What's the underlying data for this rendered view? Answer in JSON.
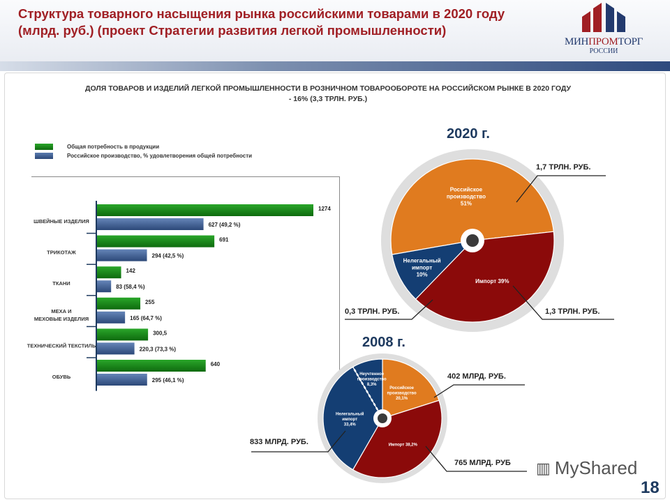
{
  "header": {
    "title": "Структура товарного насыщения рынка российскими товарами в 2020 году (млрд. руб.) (проект Стратегии развития легкой промышленности)",
    "logo": {
      "part1": "МИН",
      "part2": "ПРОМ",
      "part3": "ТОРГ",
      "sub": "РОССИИ"
    }
  },
  "subtitle": "ДОЛЯ ТОВАРОВ И ИЗДЕЛИЙ ЛЕГКОЙ ПРОМЫШЛЕННОСТИ В РОЗНИЧНОМ ТОВАРООБОРОТЕ НА РОССИЙСКОМ РЫНКЕ В 2020 ГОДУ - 16% (3,3 ТРЛН. РУБ.)",
  "colors": {
    "green": "#1c8a1c",
    "blue": "#3f5f90",
    "orange": "#e07b1f",
    "red": "#8b0a0a",
    "navy": "#143e73",
    "ring": "#dcdcdc"
  },
  "chart_data": [
    {
      "type": "bar",
      "orientation": "horizontal",
      "legend": [
        "Общая потребность в продукции",
        "Российское производство, % удовлетворения общей потребности"
      ],
      "categories": [
        "Швейные изделия",
        "Трикотаж",
        "Ткани",
        "Меха и меховые изделия",
        "Технический текстиль",
        "Обувь"
      ],
      "series": [
        {
          "name": "Общая потребность в продукции",
          "values": [
            1274,
            691,
            142,
            255,
            300.5,
            640
          ],
          "labels": [
            "1274",
            "691",
            "142",
            "255",
            "300,5",
            "640"
          ]
        },
        {
          "name": "Российское производство, % удовлетворения общей потребности",
          "values": [
            627,
            294,
            83,
            165,
            220.3,
            295
          ],
          "labels": [
            "627 (49,2 %)",
            "294 (42,5 %)",
            "83 (58,4 %)",
            "165 (64,7 %)",
            "220,3 (73,3 %)",
            "295 (46,1 %)"
          ]
        }
      ]
    },
    {
      "type": "pie",
      "title": "2020 г.",
      "slices": [
        {
          "label": "Российское производство 51%",
          "value": 51,
          "color": "#e07b1f"
        },
        {
          "label": "Импорт 39%",
          "value": 39,
          "color": "#8b0a0a"
        },
        {
          "label": "Нелегальный импорт 10%",
          "value": 10,
          "color": "#143e73"
        }
      ],
      "callouts": [
        "1,7 трлн. руб.",
        "1,3 трлн. руб.",
        "0,3 трлн. руб."
      ]
    },
    {
      "type": "pie",
      "title": "2008 г.",
      "slices": [
        {
          "label": "Российское производство 20,1%",
          "value": 20.1,
          "color": "#e07b1f"
        },
        {
          "label": "Импорт 38,2%",
          "value": 38.2,
          "color": "#8b0a0a"
        },
        {
          "label": "Нелегальный импорт 33,4%",
          "value": 33.4,
          "color": "#143e73"
        },
        {
          "label": "Неучтенное производство 8,3%",
          "value": 8.3,
          "color": "#143e73"
        }
      ],
      "callouts": [
        "402 млрд. руб.",
        "765 млрд. руб",
        "833 млрд. руб."
      ]
    }
  ],
  "watermark": "MyShared",
  "page_number": "18"
}
